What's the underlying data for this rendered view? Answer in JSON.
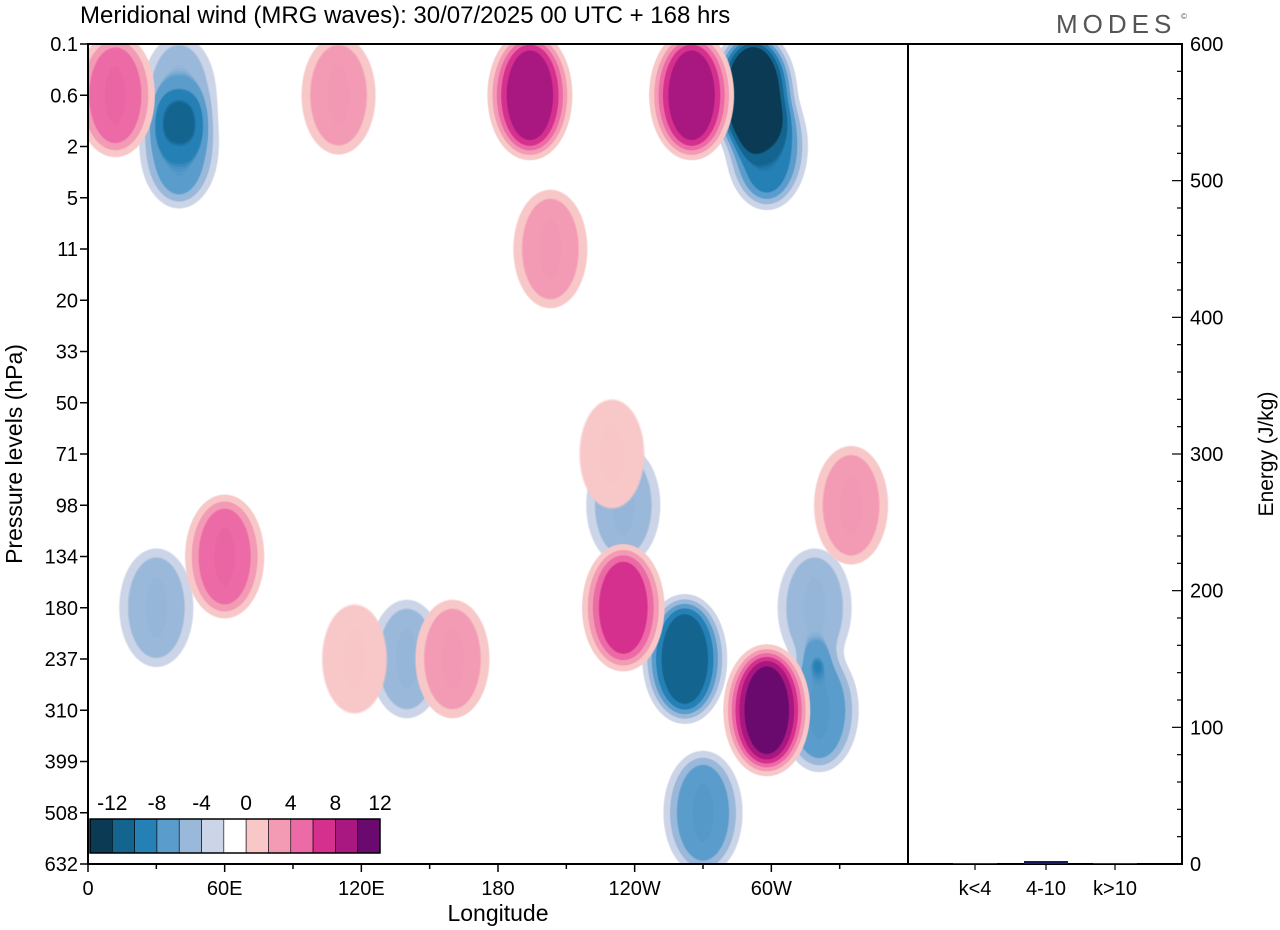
{
  "header": {
    "title": "Meridional wind (MRG waves):  30/07/2025  00 UTC  + 168 hrs",
    "logo": "MODES",
    "logo_mark": "©"
  },
  "chart_data": [
    {
      "type": "heatmap",
      "name": "meridional-wind-section",
      "title": "Meridional wind (MRG waves):  30/07/2025  00 UTC  + 168 hrs",
      "xlabel": "Longitude",
      "ylabel": "Pressure levels (hPa)",
      "x_ticks": [
        "0",
        "60E",
        "120E",
        "180",
        "120W",
        "60W"
      ],
      "x_tick_degrees": [
        0,
        60,
        120,
        180,
        240,
        300
      ],
      "xlim": [
        0,
        360
      ],
      "y_ticks": [
        "0.1",
        "0.6",
        "2",
        "5",
        "11",
        "20",
        "33",
        "50",
        "71",
        "98",
        "134",
        "180",
        "237",
        "310",
        "399",
        "508",
        "632"
      ],
      "colorbar": {
        "labels": [
          "-12",
          "-8",
          "-4",
          "0",
          "4",
          "8",
          "12"
        ],
        "levels": [
          -14,
          -12,
          -10,
          -8,
          -6,
          -4,
          -2,
          2,
          4,
          6,
          8,
          10,
          12,
          14
        ],
        "colors": [
          "#0b3a55",
          "#13648f",
          "#2580b5",
          "#5a9ccb",
          "#9ab8da",
          "#ccd4e8",
          "#ffffff",
          "#f8c8c8",
          "#f39bb5",
          "#ec6aa5",
          "#d6308f",
          "#a81880",
          "#6b0a6e"
        ]
      },
      "features": [
        {
          "lon": 292,
          "level": 0.6,
          "value": -16
        },
        {
          "lon": 194,
          "level": 0.6,
          "value": 12
        },
        {
          "lon": 265,
          "level": 0.6,
          "value": 12
        },
        {
          "lon": 40,
          "level": 2,
          "value": -8
        },
        {
          "lon": 298,
          "level": 2,
          "value": -10
        },
        {
          "lon": 40,
          "level": 0.6,
          "value": -6
        },
        {
          "lon": 12,
          "level": 0.6,
          "value": 8
        },
        {
          "lon": 110,
          "level": 0.6,
          "value": 6
        },
        {
          "lon": 203,
          "level": 11,
          "value": 6
        },
        {
          "lon": 235,
          "level": 180,
          "value": 10
        },
        {
          "lon": 262,
          "level": 237,
          "value": -12
        },
        {
          "lon": 298,
          "level": 310,
          "value": 14
        },
        {
          "lon": 321,
          "level": 310,
          "value": -8
        },
        {
          "lon": 319,
          "level": 180,
          "value": -6
        },
        {
          "lon": 60,
          "level": 134,
          "value": 8
        },
        {
          "lon": 30,
          "level": 180,
          "value": -6
        },
        {
          "lon": 140,
          "level": 237,
          "value": -6
        },
        {
          "lon": 160,
          "level": 237,
          "value": 6
        },
        {
          "lon": 117,
          "level": 237,
          "value": 4
        },
        {
          "lon": 230,
          "level": 71,
          "value": 4
        },
        {
          "lon": 335,
          "level": 98,
          "value": 6
        },
        {
          "lon": 235,
          "level": 98,
          "value": -6
        },
        {
          "lon": 270,
          "level": 508,
          "value": -8
        }
      ]
    },
    {
      "type": "bar",
      "name": "energy-spectrum",
      "ylabel": "Energy (J/kg)",
      "categories": [
        "k<4",
        "4-10",
        "k>10"
      ],
      "values": [
        0,
        2,
        0
      ],
      "bar_color": "#1a1a5e",
      "ylim": [
        0,
        600
      ],
      "y_ticks": [
        "0",
        "100",
        "200",
        "300",
        "400",
        "500",
        "600"
      ]
    }
  ]
}
